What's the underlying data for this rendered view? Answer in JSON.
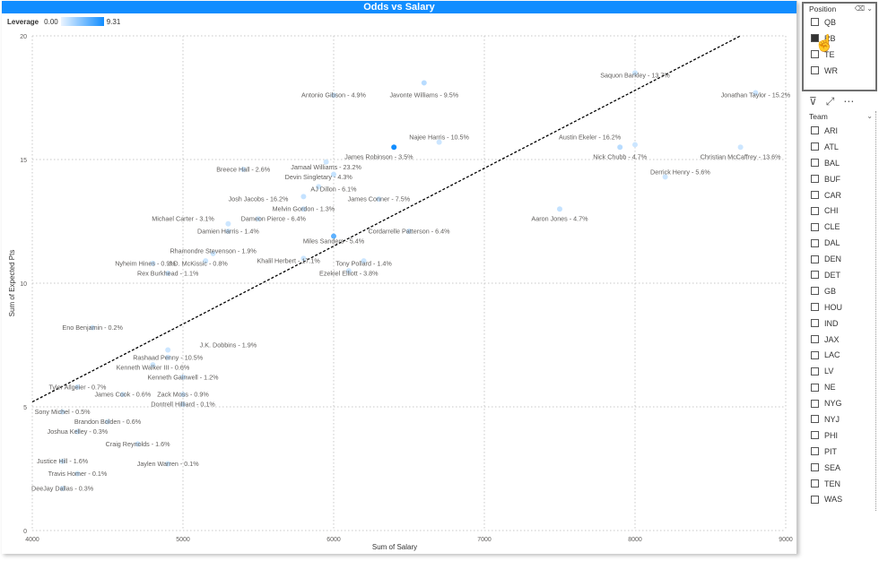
{
  "visual": {
    "title": "Odds vs Salary"
  },
  "legend": {
    "label": "Leverage",
    "min": "0.00",
    "max": "9.31"
  },
  "colors": {
    "accent": "#118DFF",
    "point_light": "#d6e9fb",
    "trend": "#000000"
  },
  "chart_data": {
    "type": "scatter",
    "title": "Odds vs Salary",
    "xlabel": "Sum of Salary",
    "ylabel": "Sum of Expected Pts",
    "xlim": [
      4000,
      9000
    ],
    "ylim": [
      0,
      20
    ],
    "x_ticks": [
      "4000",
      "5000",
      "6000",
      "7000",
      "8000",
      "9000"
    ],
    "y_ticks": [
      "0",
      "5",
      "10",
      "15",
      "20"
    ],
    "grid": true,
    "trendline": {
      "x": [
        4000,
        8700
      ],
      "y": [
        5.2,
        20
      ]
    },
    "points": [
      {
        "x": 6600,
        "y": 18.1,
        "label": "Javonte Williams - 9.5%",
        "lev": 2,
        "lx": 6600,
        "ly": 17.6
      },
      {
        "x": 6000,
        "y": 17.6,
        "label": "Antonio Gibson - 4.9%",
        "lev": 0.5,
        "lx": 6000,
        "ly": 17.6
      },
      {
        "x": 8000,
        "y": 18.5,
        "label": "Saquon Barkley - 13.7%",
        "lev": 0.3,
        "lx": 8000,
        "ly": 18.4
      },
      {
        "x": 8800,
        "y": 17.7,
        "label": "Jonathan Taylor - 15.2%",
        "lev": 1.2,
        "lx": 8800,
        "ly": 17.6
      },
      {
        "x": 6400,
        "y": 15.5,
        "label": "James Robinson - 3.5%",
        "lev": 9.3,
        "lx": 6300,
        "ly": 15.1
      },
      {
        "x": 6700,
        "y": 15.7,
        "label": "Najee Harris - 10.5%",
        "lev": 0.3,
        "lx": 6700,
        "ly": 15.9
      },
      {
        "x": 5950,
        "y": 14.9,
        "label": "Jamaal Williams - 23.2%",
        "lev": 0.3,
        "lx": 5950,
        "ly": 14.7
      },
      {
        "x": 6000,
        "y": 14.4,
        "label": "Devin Singletary - 4.3%",
        "lev": 1.5,
        "lx": 5900,
        "ly": 14.3
      },
      {
        "x": 5400,
        "y": 14.6,
        "label": "Breece Hall - 2.6%",
        "lev": 0.3,
        "lx": 5400,
        "ly": 14.6
      },
      {
        "x": 5900,
        "y": 13.9,
        "label": "AJ Dillon - 6.1%",
        "lev": 0.3,
        "lx": 6000,
        "ly": 13.8
      },
      {
        "x": 6300,
        "y": 13.4,
        "label": "James Conner - 7.5%",
        "lev": 0.3,
        "lx": 6300,
        "ly": 13.4
      },
      {
        "x": 5800,
        "y": 13.5,
        "label": "Josh Jacobs - 16.2%",
        "lev": 1.5,
        "lx": 5500,
        "ly": 13.4
      },
      {
        "x": 5800,
        "y": 13.0,
        "label": "Melvin Gordon - 1.3%",
        "lev": 0.3,
        "lx": 5800,
        "ly": 13.0
      },
      {
        "x": 8000,
        "y": 15.6,
        "label": "Austin Ekeler - 16.2%",
        "lev": 0.3,
        "lx": 7700,
        "ly": 15.9
      },
      {
        "x": 7900,
        "y": 15.5,
        "label": "Nick Chubb - 4.7%",
        "lev": 2,
        "lx": 7900,
        "ly": 15.1
      },
      {
        "x": 8700,
        "y": 15.5,
        "label": "Christian McCaffrey - 13.6%",
        "lev": 0.8,
        "lx": 8700,
        "ly": 15.1
      },
      {
        "x": 8200,
        "y": 14.3,
        "label": "Derrick Henry - 5.6%",
        "lev": 0.3,
        "lx": 8300,
        "ly": 14.5
      },
      {
        "x": 7500,
        "y": 13.0,
        "label": "Aaron Jones - 4.7%",
        "lev": 1.5,
        "lx": 7500,
        "ly": 12.6
      },
      {
        "x": 5300,
        "y": 12.4,
        "label": "Michael Carter - 3.1%",
        "lev": 0.3,
        "lx": 5000,
        "ly": 12.6
      },
      {
        "x": 5500,
        "y": 12.6,
        "label": "Dameon Pierce - 6.4%",
        "lev": 0.3,
        "lx": 5600,
        "ly": 12.6
      },
      {
        "x": 5300,
        "y": 12.1,
        "label": "Damien Harris - 1.4%",
        "lev": 0.3,
        "lx": 5300,
        "ly": 12.1
      },
      {
        "x": 6000,
        "y": 11.9,
        "label": "Miles Sanders - 5.4%",
        "lev": 6,
        "lx": 6000,
        "ly": 11.7
      },
      {
        "x": 6500,
        "y": 12.1,
        "label": "Cordarrelle Patterson - 6.4%",
        "lev": 0.3,
        "lx": 6500,
        "ly": 12.1
      },
      {
        "x": 5200,
        "y": 11.2,
        "label": "Rhamondre Stevenson - 1.9%",
        "lev": 0.3,
        "lx": 5200,
        "ly": 11.3
      },
      {
        "x": 5800,
        "y": 11.0,
        "label": "Khalil Herbert - 17.1%",
        "lev": 0.3,
        "lx": 5700,
        "ly": 10.9
      },
      {
        "x": 6200,
        "y": 10.9,
        "label": "Tony Pollard - 1.4%",
        "lev": 0.3,
        "lx": 6200,
        "ly": 10.8
      },
      {
        "x": 4800,
        "y": 10.8,
        "label": "Nyheim Hines - 0.9%",
        "lev": 0.3,
        "lx": 4750,
        "ly": 10.8
      },
      {
        "x": 5150,
        "y": 10.9,
        "label": "J.D. McKissic - 0.8%",
        "lev": 0.3,
        "lx": 5100,
        "ly": 10.8
      },
      {
        "x": 4900,
        "y": 10.4,
        "label": "Rex Burkhead - 1.1%",
        "lev": 0.3,
        "lx": 4900,
        "ly": 10.4
      },
      {
        "x": 6100,
        "y": 10.5,
        "label": "Ezekiel Elliott - 3.8%",
        "lev": 0.3,
        "lx": 6100,
        "ly": 10.4
      },
      {
        "x": 4400,
        "y": 8.2,
        "label": "Eno Benjamin - 0.2%",
        "lev": 0.3,
        "lx": 4400,
        "ly": 8.2
      },
      {
        "x": 4900,
        "y": 7.3,
        "label": "J.K. Dobbins - 1.9%",
        "lev": 1,
        "lx": 5300,
        "ly": 7.5
      },
      {
        "x": 4900,
        "y": 7.0,
        "label": "Rashaad Penny - 10.5%",
        "lev": 0.3,
        "lx": 4900,
        "ly": 7.0
      },
      {
        "x": 4800,
        "y": 6.7,
        "label": "Kenneth Walker III - 0.6%",
        "lev": 0.3,
        "lx": 4800,
        "ly": 6.6
      },
      {
        "x": 5000,
        "y": 6.2,
        "label": "Kenneth Gainwell - 1.2%",
        "lev": 0.3,
        "lx": 5000,
        "ly": 6.2
      },
      {
        "x": 4300,
        "y": 5.8,
        "label": "Tyler Allgeier - 0.7%",
        "lev": 0.3,
        "lx": 4300,
        "ly": 5.8
      },
      {
        "x": 4600,
        "y": 5.5,
        "label": "James Cook - 0.6%",
        "lev": 0.3,
        "lx": 4600,
        "ly": 5.5
      },
      {
        "x": 5000,
        "y": 5.5,
        "label": "Zack Moss - 0.9%",
        "lev": 0.3,
        "lx": 5000,
        "ly": 5.5
      },
      {
        "x": 5000,
        "y": 5.1,
        "label": "Dontrell Hilliard - 0.1%",
        "lev": 0.3,
        "lx": 5000,
        "ly": 5.1
      },
      {
        "x": 4200,
        "y": 4.8,
        "label": "Sony Michel - 0.5%",
        "lev": 0.3,
        "lx": 4200,
        "ly": 4.8
      },
      {
        "x": 4500,
        "y": 4.4,
        "label": "Brandon Bolden - 0.6%",
        "lev": 0.3,
        "lx": 4500,
        "ly": 4.4
      },
      {
        "x": 4300,
        "y": 4.0,
        "label": "Joshua Kelley - 0.3%",
        "lev": 0.3,
        "lx": 4300,
        "ly": 4.0
      },
      {
        "x": 4700,
        "y": 3.5,
        "label": "Craig Reynolds - 1.6%",
        "lev": 0.3,
        "lx": 4700,
        "ly": 3.5
      },
      {
        "x": 4200,
        "y": 2.8,
        "label": "Justice Hill - 1.6%",
        "lev": 0.3,
        "lx": 4200,
        "ly": 2.8
      },
      {
        "x": 4900,
        "y": 2.7,
        "label": "Jaylen Warren - 0.1%",
        "lev": 0.3,
        "lx": 4900,
        "ly": 2.7
      },
      {
        "x": 4300,
        "y": 2.3,
        "label": "Travis Homer - 0.1%",
        "lev": 0.3,
        "lx": 4300,
        "ly": 2.3
      },
      {
        "x": 4200,
        "y": 1.7,
        "label": "DeeJay Dallas - 0.3%",
        "lev": 0.3,
        "lx": 4200,
        "ly": 1.7
      }
    ]
  },
  "position_slicer": {
    "title": "Position",
    "items": [
      {
        "label": "QB",
        "checked": false
      },
      {
        "label": "RB",
        "checked": true
      },
      {
        "label": "TE",
        "checked": false
      },
      {
        "label": "WR",
        "checked": false
      }
    ]
  },
  "team_slicer": {
    "title": "Team",
    "items": [
      "ARI",
      "ATL",
      "BAL",
      "BUF",
      "CAR",
      "CHI",
      "CLE",
      "DAL",
      "DEN",
      "DET",
      "GB",
      "HOU",
      "IND",
      "JAX",
      "LAC",
      "LV",
      "NE",
      "NYG",
      "NYJ",
      "PHI",
      "PIT",
      "SEA",
      "TEN",
      "WAS"
    ]
  },
  "toolbar": {
    "filter_icon": "filter-icon",
    "focus_icon": "focus-mode-icon",
    "more_icon": "more-options-icon"
  }
}
